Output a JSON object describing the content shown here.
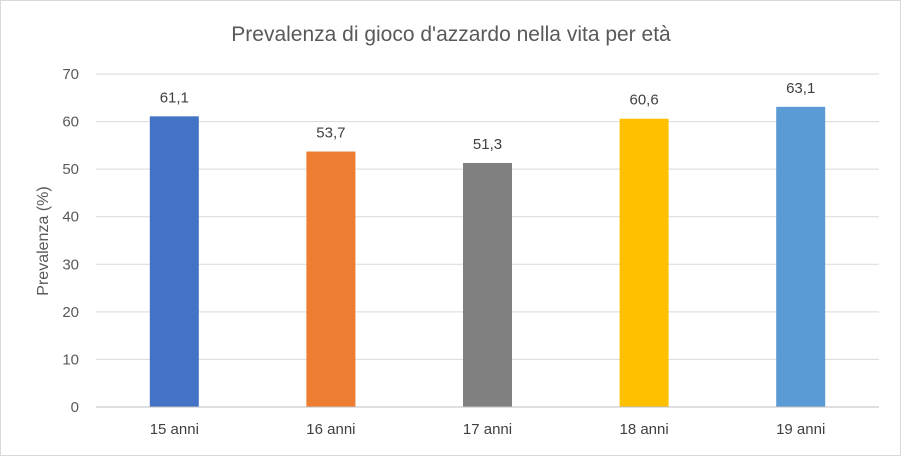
{
  "chart_data": {
    "type": "bar",
    "title": "Prevalenza di gioco d'azzardo nella vita per età",
    "xlabel": "",
    "ylabel": "Prevalenza (%)",
    "ylim": [
      0,
      70
    ],
    "yticks": [
      0,
      10,
      20,
      30,
      40,
      50,
      60,
      70
    ],
    "grid": true,
    "legend": "none",
    "categories": [
      "15 anni",
      "16 anni",
      "17 anni",
      "18 anni",
      "19 anni"
    ],
    "values": [
      61.1,
      53.7,
      51.3,
      60.6,
      63.1
    ],
    "value_labels": [
      "61,1",
      "53,7",
      "51,3",
      "60,6",
      "63,1"
    ],
    "colors": [
      "#4472C4",
      "#ED7D31",
      "#808080",
      "#FFC000",
      "#5B9BD5"
    ]
  }
}
